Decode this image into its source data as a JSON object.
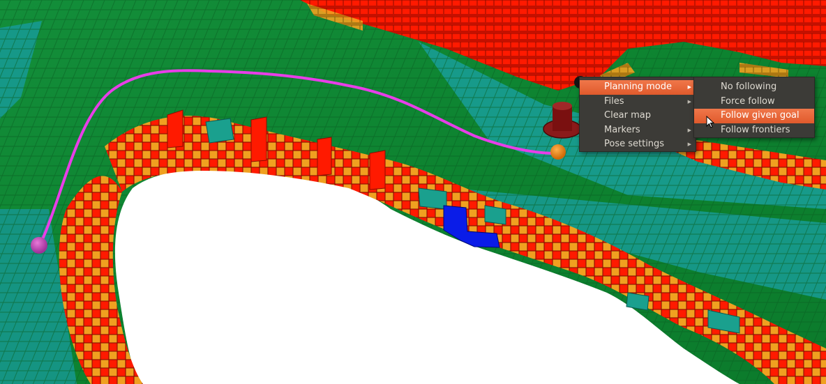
{
  "context_menu": {
    "items": [
      {
        "label": "Planning mode",
        "has_submenu": true,
        "highlighted": true
      },
      {
        "label": "Files",
        "has_submenu": true,
        "highlighted": false
      },
      {
        "label": "Clear map",
        "has_submenu": false,
        "highlighted": false
      },
      {
        "label": "Markers",
        "has_submenu": true,
        "highlighted": false
      },
      {
        "label": "Pose settings",
        "has_submenu": true,
        "highlighted": false
      }
    ]
  },
  "planning_submenu": {
    "items": [
      {
        "label": "No following",
        "highlighted": false
      },
      {
        "label": "Force follow",
        "highlighted": false
      },
      {
        "label": "Follow given goal",
        "highlighted": true
      },
      {
        "label": "Follow frontiers",
        "highlighted": false
      }
    ]
  },
  "scene": {
    "description_icons": [
      "voxel-map",
      "planned-path",
      "start-marker",
      "goal-marker",
      "robot-marker"
    ],
    "colors": {
      "floor_green": "#0f8a2e",
      "floor_teal": "#149484",
      "obstacle_red": "#ff1a00",
      "obstacle_orange": "#f0a020",
      "unknown_blue": "#0a1ce8",
      "path": "#e83ee8",
      "start_marker": "#c04ab0",
      "goal_marker": "#f28a1c",
      "robot_marker": "#8a1a1a",
      "menu_bg": "#3c3b37",
      "menu_highlight": "#e8643a"
    }
  }
}
